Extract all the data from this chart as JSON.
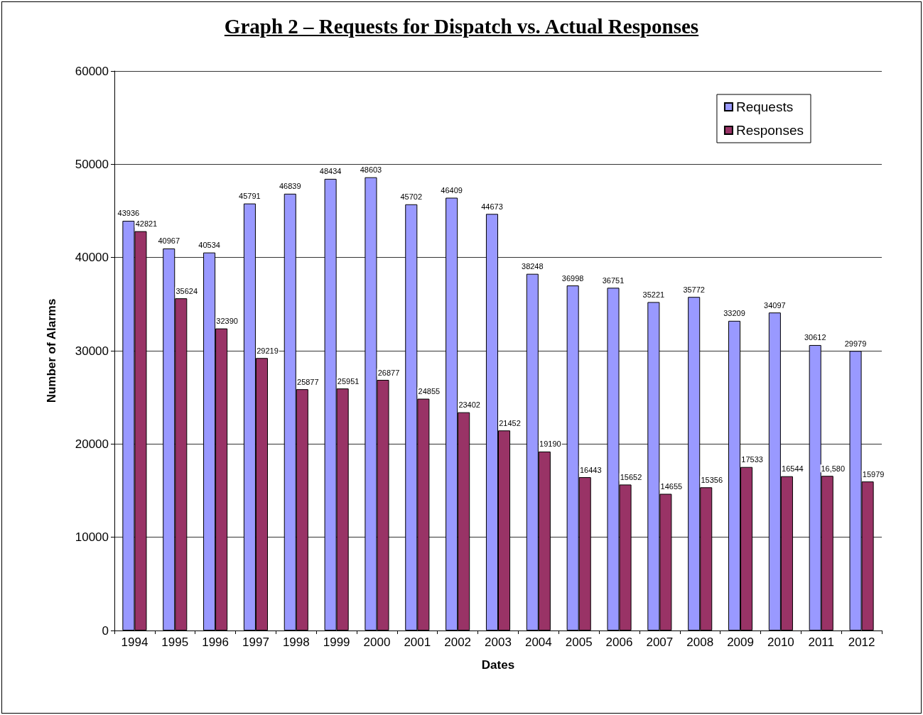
{
  "chart_data": {
    "type": "bar",
    "title": "Graph 2 – Requests for Dispatch vs. Actual Responses",
    "xlabel": "Dates",
    "ylabel": "Number of Alarms",
    "categories": [
      "1994",
      "1995",
      "1996",
      "1997",
      "1998",
      "1999",
      "2000",
      "2001",
      "2002",
      "2003",
      "2004",
      "2005",
      "2006",
      "2007",
      "2008",
      "2009",
      "2010",
      "2011",
      "2012"
    ],
    "series": [
      {
        "name": "Requests",
        "color": "#9999ff",
        "values": [
          43936,
          40967,
          40534,
          45791,
          46839,
          48434,
          48603,
          45702,
          46409,
          44673,
          38248,
          36998,
          36751,
          35221,
          35772,
          33209,
          34097,
          30612,
          29979
        ],
        "value_labels": [
          "43936",
          "40967",
          "40534",
          "45791",
          "46839",
          "48434",
          "48603",
          "45702",
          "46409",
          "44673",
          "38248",
          "36998",
          "36751",
          "35221",
          "35772",
          "33209",
          "34097",
          "30612",
          "29979"
        ]
      },
      {
        "name": "Responses",
        "color": "#993366",
        "values": [
          42821,
          35624,
          32390,
          29219,
          25877,
          25951,
          26877,
          24855,
          23402,
          21452,
          19190,
          16443,
          15652,
          14655,
          15356,
          17533,
          16544,
          16580,
          15979
        ],
        "value_labels": [
          "42821",
          "35624",
          "32390",
          "29219",
          "25877",
          "25951",
          "26877",
          "24855",
          "23402",
          "21452",
          "19190",
          "16443",
          "15652",
          "14655",
          "15356",
          "17533",
          "16544",
          "16,580",
          "15979"
        ]
      }
    ],
    "ylim": [
      0,
      60000
    ],
    "yticks": [
      0,
      10000,
      20000,
      30000,
      40000,
      50000,
      60000
    ],
    "grid": "y",
    "legend": "top right"
  }
}
